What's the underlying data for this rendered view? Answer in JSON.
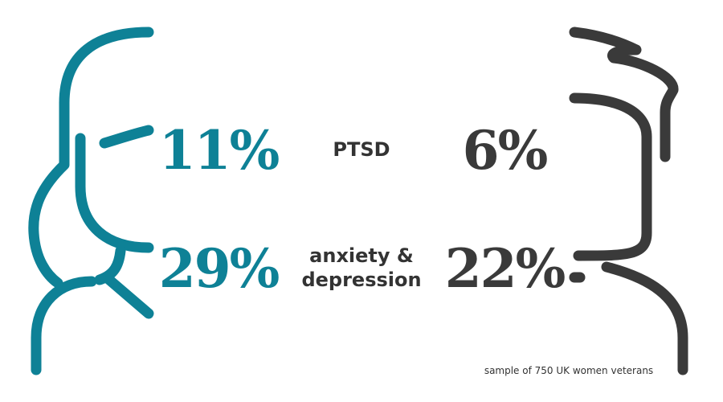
{
  "rows": [
    {
      "label_lines": [
        "PTSD"
      ],
      "women": "11%",
      "men": "6%"
    },
    {
      "label_lines": [
        "anxiety &",
        "depression"
      ],
      "women": "29%",
      "men": "22%"
    }
  ],
  "footnote": "sample of 750 UK women veterans"
}
